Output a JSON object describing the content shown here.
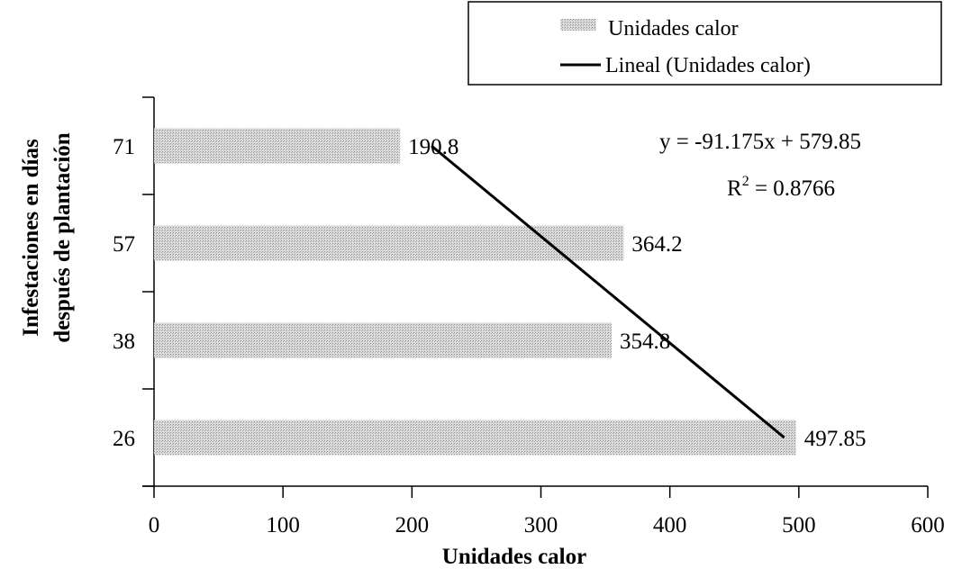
{
  "chart_data": {
    "type": "bar",
    "orientation": "horizontal",
    "categories": [
      "26",
      "38",
      "57",
      "71"
    ],
    "series": [
      {
        "name": "Unidades calor",
        "values": [
          497.85,
          354.8,
          364.2,
          190.8
        ],
        "data_labels": [
          "497.85",
          "354.8",
          "364.2",
          "190.8"
        ],
        "color": "#c0c0c0"
      }
    ],
    "trendline": {
      "name": "Lineal (Unidades calor)",
      "type": "linear",
      "slope": -91.175,
      "intercept": 579.85,
      "color": "#000000",
      "equation_label": "y = -91.175x + 579.85",
      "r2_prefix": "R",
      "r2_sup": "2",
      "r2_value": " = 0.8766"
    },
    "xlabel": "Unidades calor",
    "ylabel_lines": [
      "Infestaciones en días",
      "después de plantación"
    ],
    "xlim": [
      0,
      600
    ],
    "x_ticks": [
      "0",
      "100",
      "200",
      "300",
      "400",
      "500",
      "600"
    ],
    "grid": false,
    "legend_position": "top-right"
  }
}
